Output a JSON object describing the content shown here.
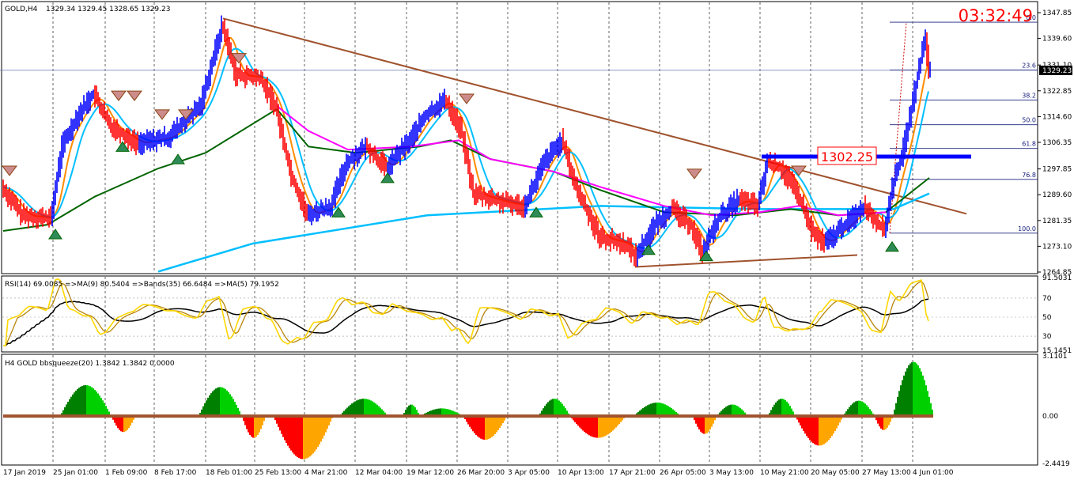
{
  "header": {
    "symbol_tf": "GOLD,H4",
    "ohlc": "1329.34 1329.45 1328.65 1329.23",
    "countdown": "03:32:49",
    "level_box": "1302.25"
  },
  "rsi_panel": {
    "label": "RSI(14) 69.0085 =>MA(9) 80.5404 =>Bands(35) 66.6484 =>MA(5) 79.1952"
  },
  "bbs_panel": {
    "label": "H4 GOLD bbsqueeze(20) 1.3842 1.3842 0.0000"
  },
  "fib_levels": [
    {
      "label": "0.0",
      "value": 1344.8
    },
    {
      "label": "23.6",
      "value": 1329.5
    },
    {
      "label": "38.2",
      "value": 1319.9
    },
    {
      "label": "50.0",
      "value": 1312.0
    },
    {
      "label": "61.8",
      "value": 1304.4
    },
    {
      "label": "76.8",
      "value": 1294.5
    },
    {
      "label": "100.0",
      "value": 1277.3
    }
  ],
  "price_axis": {
    "ticks": [
      "1347.85",
      "1339.60",
      "1331.10",
      "1322.85",
      "1314.60",
      "1306.35",
      "1297.85",
      "1289.60",
      "1281.35",
      "1273.10",
      "1264.85"
    ],
    "current": "1329.23"
  },
  "rsi_axis": {
    "ticks": [
      "91.5031",
      "70",
      "50",
      "30",
      "15.1451"
    ]
  },
  "bbs_axis": {
    "ticks": [
      "3.1101",
      "0.00",
      "-2.4419"
    ]
  },
  "time_axis": {
    "labels": [
      "17 Jan 2019",
      "25 Jan 01:00",
      "1 Feb 09:00",
      "8 Feb 17:00",
      "18 Feb 01:00",
      "25 Feb 13:00",
      "4 Mar 21:00",
      "12 Mar 04:00",
      "19 Mar 12:00",
      "26 Mar 20:00",
      "3 Apr 05:00",
      "10 Apr 13:00",
      "17 Apr 21:00",
      "26 Apr 05:00",
      "3 May 13:00",
      "10 May 21:00",
      "20 May 05:00",
      "27 May 13:00",
      "4 Jun 01:00"
    ]
  },
  "colors": {
    "bull_bar": "#0000ff",
    "bear_bar": "#ff0000",
    "ma_fast": "#00bfff",
    "ma_orange": "#ff8c00",
    "ma_magenta": "#ff00ff",
    "ma_green": "#006400",
    "ma_slow": "#1e90ff",
    "trendline": "#a0522d",
    "rsi": "#ffd700",
    "rsi_ma": "#000000"
  },
  "chart_data": {
    "type": "line",
    "title": "GOLD,H4",
    "ylim": [
      1264.85,
      1347.85
    ],
    "x": [
      "17 Jan 2019",
      "25 Jan 01:00",
      "1 Feb 09:00",
      "8 Feb 17:00",
      "18 Feb 01:00",
      "25 Feb 13:00",
      "4 Mar 21:00",
      "12 Mar 04:00",
      "19 Mar 12:00",
      "26 Mar 20:00",
      "3 Apr 05:00",
      "10 Apr 13:00",
      "17 Apr 21:00",
      "26 Apr 05:00",
      "3 May 13:00",
      "10 May 21:00",
      "20 May 05:00",
      "27 May 13:00",
      "4 Jun 01:00"
    ],
    "series": [
      {
        "values": [
          1292,
          1283,
          1320,
          1312,
          1343,
          1325,
          1283,
          1297,
          1306,
          1317,
          1285,
          1306,
          1272,
          1283,
          1284,
          1300,
          1275,
          1283,
          1329
        ]
      }
    ]
  }
}
